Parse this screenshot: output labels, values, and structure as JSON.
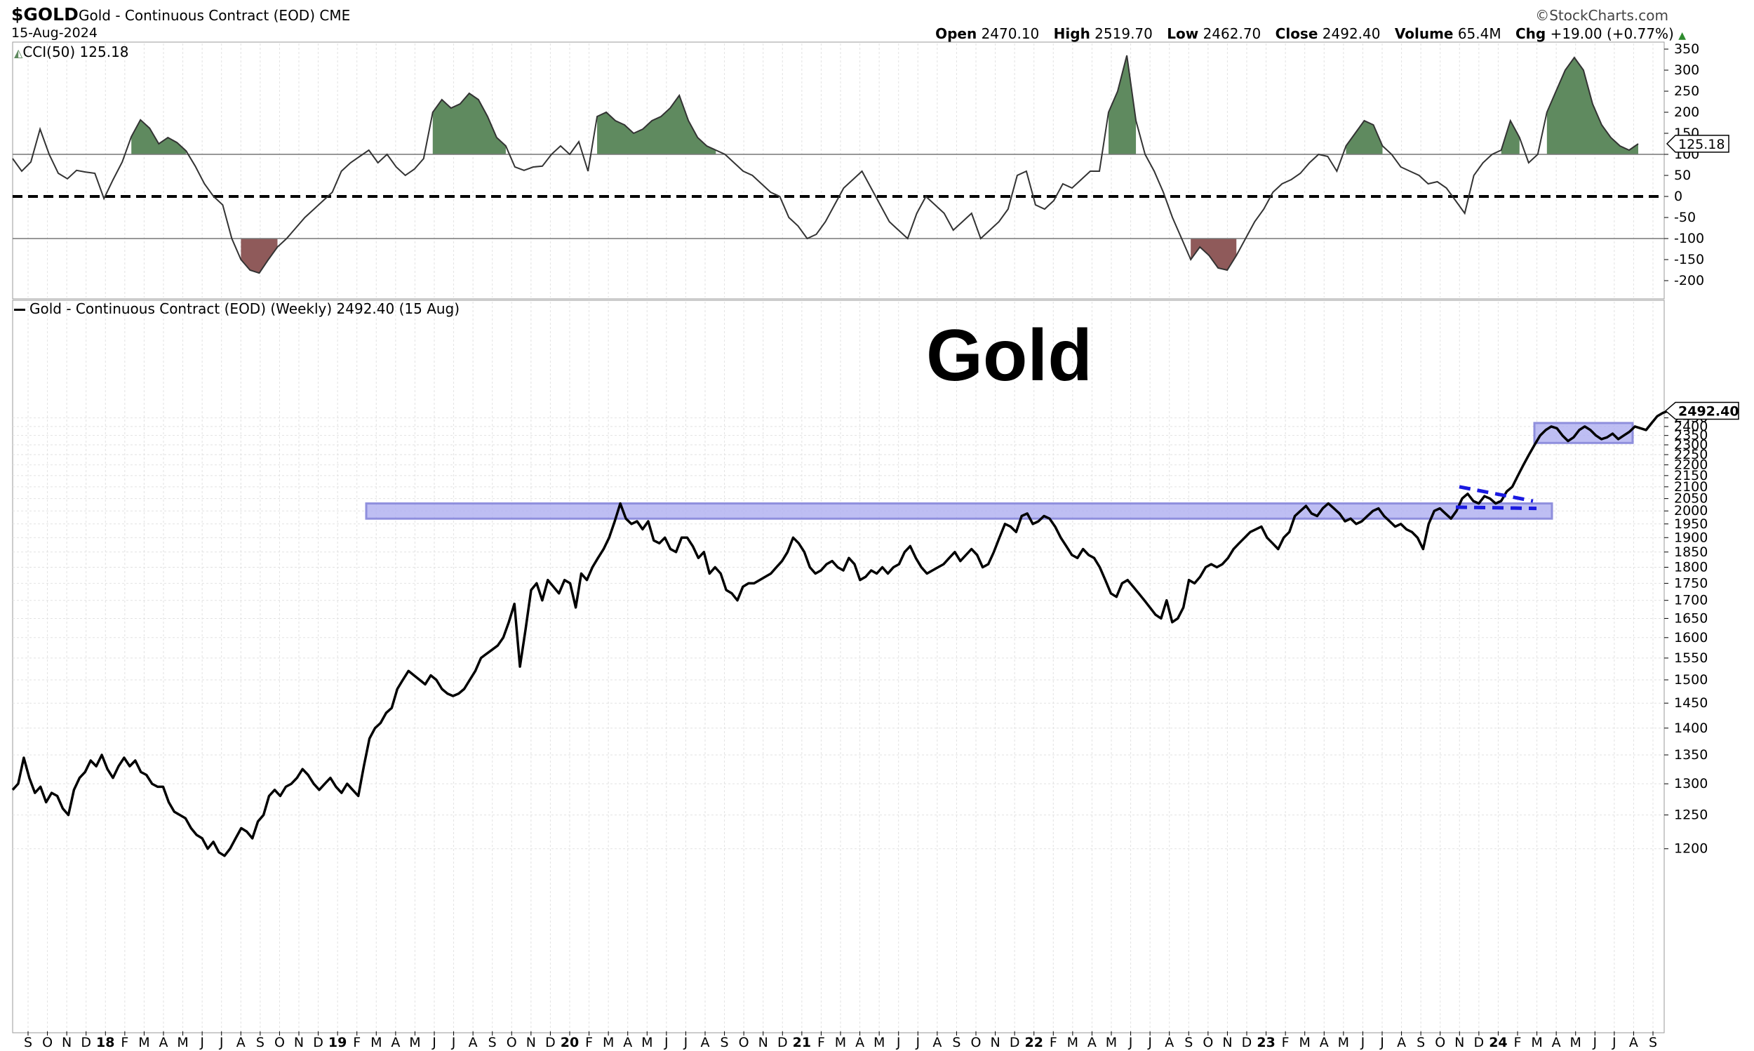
{
  "header": {
    "symbol": "$GOLD",
    "description": "Gold - Continuous Contract (EOD) CME",
    "date": "15-Aug-2024",
    "brand": "©StockCharts.com",
    "open_label": "Open",
    "open": "2470.10",
    "high_label": "High",
    "high": "2519.70",
    "low_label": "Low",
    "low": "2462.70",
    "close_label": "Close",
    "close": "2492.40",
    "volume_label": "Volume",
    "volume": "65.4M",
    "chg_label": "Chg",
    "chg": "+19.00 (+0.77%)",
    "chg_icon": "up-triangle-icon"
  },
  "cci_legend": "CCI(50) 125.18",
  "price_legend": "Gold - Continuous Contract (EOD) (Weekly) 2492.40 (15 Aug)",
  "annotation_title": "Gold",
  "cci_badge": "125.18",
  "price_badge": "2492.40",
  "colors": {
    "positive_fill": "#5f8a5f",
    "negative_fill": "#8f5a5a",
    "zone_fill": "#b3b3f2",
    "zone_stroke": "#7c7cd8",
    "trend_line": "#1a1ae0"
  },
  "chart_data": [
    {
      "type": "line",
      "panel": "upper",
      "series": [
        {
          "name": "CCI(50)",
          "values": [
            90,
            60,
            82,
            160,
            100,
            55,
            42,
            62,
            58,
            55,
            -5,
            40,
            82,
            142,
            182,
            162,
            125,
            140,
            128,
            108,
            72,
            30,
            0,
            -20,
            -100,
            -150,
            -175,
            -182,
            -150,
            -120,
            -100,
            -75,
            -50,
            -30,
            -10,
            10,
            60,
            80,
            95,
            110,
            80,
            100,
            70,
            50,
            65,
            90,
            200,
            230,
            210,
            220,
            245,
            230,
            190,
            140,
            120,
            70,
            62,
            70,
            72,
            100,
            120,
            100,
            130,
            60,
            190,
            200,
            180,
            170,
            150,
            160,
            180,
            190,
            210,
            240,
            180,
            140,
            120,
            110,
            100,
            80,
            60,
            50,
            30,
            10,
            0,
            -50,
            -70,
            -100,
            -90,
            -60,
            -20,
            20,
            40,
            60,
            20,
            -20,
            -60,
            -80,
            -100,
            -40,
            0,
            -20,
            -40,
            -80,
            -60,
            -40,
            -100,
            -80,
            -60,
            -30,
            50,
            60,
            -20,
            -30,
            -10,
            30,
            20,
            40,
            60,
            60,
            200,
            250,
            335,
            180,
            100,
            60,
            10,
            -50,
            -100,
            -150,
            -120,
            -140,
            -170,
            -175,
            -140,
            -100,
            -60,
            -30,
            10,
            30,
            40,
            55,
            80,
            100,
            95,
            60,
            120,
            150,
            180,
            170,
            120,
            100,
            70,
            60,
            50,
            30,
            35,
            20,
            -10,
            -40,
            50,
            80,
            100,
            110,
            180,
            140,
            80,
            100,
            200,
            250,
            300,
            330,
            300,
            220,
            170,
            140,
            120,
            110,
            125
          ]
        }
      ]
    },
    {
      "type": "line",
      "panel": "lower",
      "series": [
        {
          "name": "Gold - Continuous Contract (EOD) (Weekly)",
          "values": [
            1290,
            1300,
            1345,
            1310,
            1285,
            1295,
            1270,
            1285,
            1280,
            1260,
            1250,
            1290,
            1310,
            1320,
            1340,
            1330,
            1350,
            1325,
            1310,
            1330,
            1345,
            1330,
            1340,
            1320,
            1315,
            1300,
            1295,
            1295,
            1270,
            1255,
            1250,
            1245,
            1230,
            1220,
            1215,
            1200,
            1210,
            1195,
            1190,
            1200,
            1215,
            1230,
            1225,
            1215,
            1240,
            1250,
            1280,
            1290,
            1280,
            1295,
            1300,
            1310,
            1325,
            1315,
            1300,
            1290,
            1300,
            1310,
            1295,
            1285,
            1300,
            1290,
            1280,
            1330,
            1380,
            1400,
            1410,
            1430,
            1440,
            1480,
            1500,
            1520,
            1510,
            1500,
            1490,
            1510,
            1500,
            1480,
            1470,
            1465,
            1470,
            1480,
            1500,
            1520,
            1550,
            1560,
            1570,
            1580,
            1600,
            1640,
            1690,
            1530,
            1620,
            1730,
            1750,
            1700,
            1760,
            1740,
            1720,
            1760,
            1750,
            1680,
            1780,
            1760,
            1800,
            1830,
            1860,
            1900,
            1960,
            2030,
            1970,
            1950,
            1960,
            1930,
            1960,
            1890,
            1880,
            1900,
            1860,
            1850,
            1900,
            1900,
            1870,
            1830,
            1850,
            1780,
            1800,
            1780,
            1730,
            1720,
            1700,
            1740,
            1750,
            1750,
            1760,
            1770,
            1780,
            1800,
            1820,
            1850,
            1900,
            1880,
            1850,
            1800,
            1780,
            1790,
            1810,
            1820,
            1800,
            1790,
            1830,
            1810,
            1760,
            1770,
            1790,
            1780,
            1800,
            1780,
            1800,
            1810,
            1850,
            1870,
            1830,
            1800,
            1780,
            1790,
            1800,
            1810,
            1830,
            1850,
            1820,
            1840,
            1860,
            1840,
            1800,
            1810,
            1850,
            1900,
            1950,
            1940,
            1920,
            1980,
            1990,
            1950,
            1960,
            1980,
            1970,
            1940,
            1900,
            1870,
            1840,
            1830,
            1860,
            1840,
            1830,
            1800,
            1760,
            1720,
            1710,
            1750,
            1760,
            1740,
            1720,
            1700,
            1680,
            1660,
            1650,
            1700,
            1640,
            1650,
            1680,
            1760,
            1750,
            1770,
            1800,
            1810,
            1800,
            1810,
            1830,
            1860,
            1880,
            1900,
            1920,
            1930,
            1940,
            1900,
            1880,
            1860,
            1900,
            1920,
            1980,
            2000,
            2020,
            1990,
            1980,
            2010,
            2030,
            2010,
            1990,
            1960,
            1970,
            1950,
            1960,
            1980,
            2000,
            2010,
            1980,
            1960,
            1940,
            1950,
            1930,
            1920,
            1900,
            1860,
            1950,
            2000,
            2010,
            1990,
            1970,
            2000,
            2050,
            2070,
            2040,
            2030,
            2060,
            2050,
            2030,
            2040,
            2080,
            2100,
            2150,
            2200,
            2250,
            2300,
            2350,
            2380,
            2400,
            2390,
            2350,
            2320,
            2340,
            2380,
            2400,
            2380,
            2350,
            2330,
            2340,
            2360,
            2330,
            2350,
            2370,
            2400,
            2390,
            2380,
            2420,
            2460,
            2480,
            2492.4
          ]
        }
      ],
      "ylim": [
        1180,
        2510
      ]
    }
  ],
  "axes": {
    "cci_ticks": [
      "350",
      "300",
      "250",
      "200",
      "150",
      "100",
      "50",
      "0",
      "-50",
      "-100",
      "-150",
      "-200"
    ],
    "price_ticks": [
      "2450",
      "2400",
      "2350",
      "2300",
      "2250",
      "2200",
      "2150",
      "2100",
      "2050",
      "2000",
      "1950",
      "1900",
      "1850",
      "1800",
      "1750",
      "1700",
      "1650",
      "1600",
      "1550",
      "1500",
      "1450",
      "1400",
      "1350",
      "1300",
      "1250",
      "1200"
    ],
    "x_labels": [
      "S",
      "O",
      "N",
      "D",
      "18",
      "F",
      "M",
      "A",
      "M",
      "J",
      "J",
      "A",
      "S",
      "O",
      "N",
      "D",
      "19",
      "F",
      "M",
      "A",
      "M",
      "J",
      "J",
      "A",
      "S",
      "O",
      "N",
      "D",
      "20",
      "F",
      "M",
      "A",
      "M",
      "J",
      "J",
      "A",
      "S",
      "O",
      "N",
      "D",
      "21",
      "F",
      "M",
      "A",
      "M",
      "J",
      "J",
      "A",
      "S",
      "O",
      "N",
      "D",
      "22",
      "F",
      "M",
      "A",
      "M",
      "J",
      "J",
      "A",
      "S",
      "O",
      "N",
      "D",
      "23",
      "F",
      "M",
      "A",
      "M",
      "J",
      "J",
      "A",
      "S",
      "O",
      "N",
      "D",
      "24",
      "F",
      "M",
      "A",
      "M",
      "J",
      "J",
      "A",
      "S"
    ]
  }
}
